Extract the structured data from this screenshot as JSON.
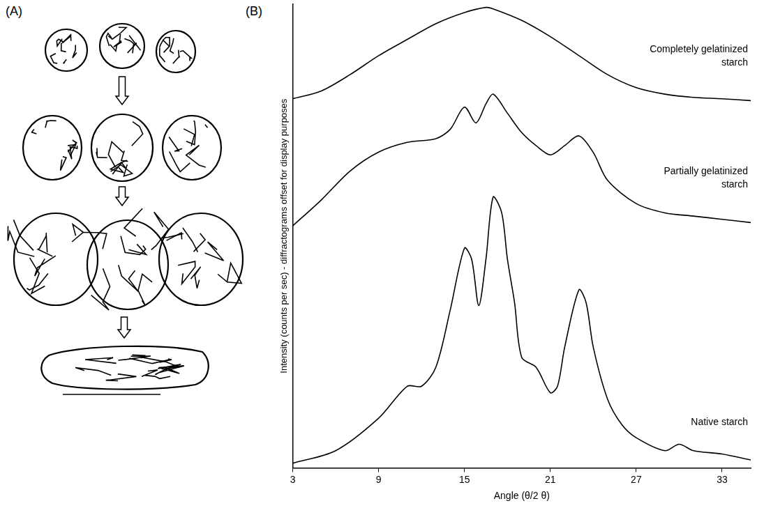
{
  "panel_a": {
    "label": "(A)"
  },
  "chart_data": {
    "type": "line",
    "panel_label": "(B)",
    "x_label": "Angle (θ/2 θ)",
    "y_label": "Intensity (counts per sec) - diffractograms offset for display purposes",
    "xlim": [
      3,
      35
    ],
    "xticks": [
      3,
      9,
      15,
      21,
      27,
      33
    ],
    "ylim": [
      0,
      100
    ],
    "grid": false,
    "tick_labels": "x",
    "series": [
      {
        "name": "Completely gelatinized starch",
        "color": "#000000",
        "x": [
          3,
          5,
          7,
          9,
          11,
          13,
          15,
          16.5,
          17,
          19,
          21,
          23,
          25,
          27,
          29,
          31,
          33,
          35
        ],
        "values": [
          79.6,
          81.3,
          84.8,
          88.9,
          92.4,
          95.8,
          98.2,
          99.3,
          99.0,
          96.5,
          93.0,
          88.9,
          84.8,
          82.0,
          80.6,
          79.9,
          79.6,
          79.2
        ]
      },
      {
        "name": "Partially gelatinized starch",
        "color": "#000000",
        "x": [
          3,
          5,
          7,
          9,
          11,
          13,
          14,
          15,
          15.8,
          16.5,
          17,
          18,
          19,
          20,
          21,
          22,
          23,
          24,
          25,
          27,
          29,
          31,
          33,
          35
        ],
        "values": [
          52.2,
          57.8,
          64.0,
          68.1,
          70.2,
          71.0,
          73.0,
          77.8,
          74.4,
          78.5,
          80.6,
          76.5,
          72.3,
          69.5,
          67.5,
          69.5,
          71.6,
          68.0,
          62.0,
          57.0,
          55.0,
          54.3,
          53.6,
          52.9
        ]
      },
      {
        "name": "Native starch",
        "color": "#000000",
        "x": [
          3,
          6,
          9,
          11,
          12,
          13,
          14,
          15,
          15.5,
          16,
          16.5,
          17,
          17.6,
          18,
          18.5,
          19,
          20,
          21,
          21.5,
          22,
          23,
          23.5,
          24,
          25,
          26,
          27,
          29,
          30,
          31,
          33,
          35
        ],
        "values": [
          1.0,
          3.7,
          10.7,
          17.6,
          17.6,
          21.7,
          34.0,
          47.4,
          45.0,
          35.0,
          45.0,
          58.4,
          55.0,
          45.0,
          35.6,
          23.8,
          21.7,
          16.2,
          17.6,
          26.0,
          38.4,
          35.6,
          26.0,
          14.8,
          9.3,
          6.5,
          3.7,
          5.1,
          3.7,
          3.0,
          1.7
        ]
      }
    ]
  }
}
